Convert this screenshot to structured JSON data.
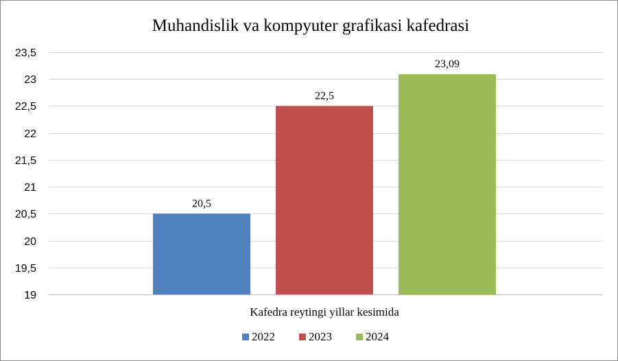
{
  "chart_data": {
    "type": "bar",
    "title": "Muhandislik  va  kompyuter  grafikasi  kafedrasi",
    "category_label": "Kafedra reytingi yillar kesimida",
    "xlabel": "",
    "ylabel": "",
    "ylim": [
      19,
      23.5
    ],
    "y_ticks": [
      "19",
      "19,5",
      "20",
      "20,5",
      "21",
      "21,5",
      "22",
      "22,5",
      "23",
      "23,5"
    ],
    "y_tick_values": [
      19,
      19.5,
      20,
      20.5,
      21,
      21.5,
      22,
      22.5,
      23,
      23.5
    ],
    "series": [
      {
        "name": "2022",
        "value": 20.5,
        "label": "20,5",
        "color": "#4f81bd"
      },
      {
        "name": "2023",
        "value": 22.5,
        "label": "22,5",
        "color": "#c0504d"
      },
      {
        "name": "2024",
        "value": 23.09,
        "label": "23,09",
        "color": "#9bbb59"
      }
    ],
    "grid": true,
    "legend_position": "bottom"
  }
}
